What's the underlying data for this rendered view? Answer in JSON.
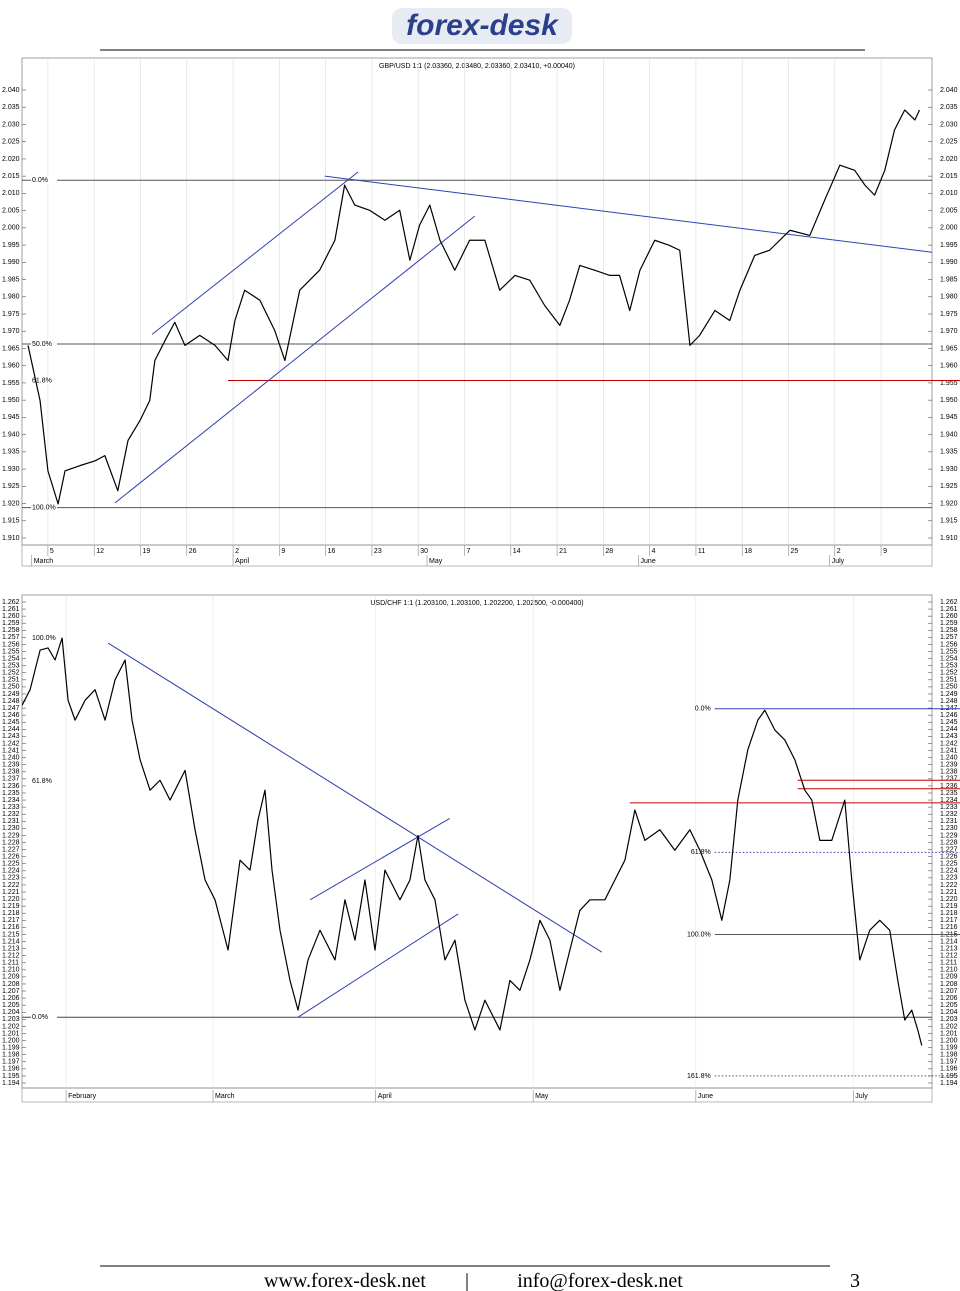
{
  "header": {
    "logo": "forex-desk"
  },
  "chart_data": [
    {
      "type": "line",
      "title": "GBP/USD 1:1 (2.03360, 2.03480, 2.03360, 2.03410, +0.00040)",
      "color": "#000000",
      "xlim": [
        -0.56,
        19.1
      ],
      "ylim": [
        1.91,
        2.04
      ],
      "xticks": [
        {
          "value": 0,
          "label": "5"
        },
        {
          "value": 1,
          "label": "12"
        },
        {
          "value": 2,
          "label": "19"
        },
        {
          "value": 3,
          "label": "26"
        },
        {
          "value": 4,
          "label": "2"
        },
        {
          "value": 5,
          "label": "9"
        },
        {
          "value": 6,
          "label": "16"
        },
        {
          "value": 7,
          "label": "23"
        },
        {
          "value": 8,
          "label": "30"
        },
        {
          "value": 9,
          "label": "7"
        },
        {
          "value": 10,
          "label": "14"
        },
        {
          "value": 11,
          "label": "21"
        },
        {
          "value": 12,
          "label": "28"
        },
        {
          "value": 13,
          "label": "4"
        },
        {
          "value": 14,
          "label": "11"
        },
        {
          "value": 15,
          "label": "18"
        },
        {
          "value": 16,
          "label": "25"
        },
        {
          "value": 17,
          "label": "2"
        },
        {
          "value": 18,
          "label": "9"
        }
      ],
      "months": [
        {
          "value": -0.35,
          "label": "March"
        },
        {
          "value": 4,
          "label": "April"
        },
        {
          "value": 8.19,
          "label": "May"
        },
        {
          "value": 12.76,
          "label": "June"
        },
        {
          "value": 16.89,
          "label": "July"
        }
      ],
      "yticks": [
        {
          "value": 1.91,
          "label": "1.910"
        },
        1.915,
        {
          "value": 1.92,
          "label": "1.920"
        },
        1.925,
        {
          "value": 1.93,
          "label": "1.930"
        },
        1.935,
        {
          "value": 1.94,
          "label": "1.940"
        },
        1.945,
        {
          "value": 1.95,
          "label": "1.950"
        },
        1.955,
        {
          "value": 1.96,
          "label": "1.960"
        },
        1.965,
        {
          "value": 1.97,
          "label": "1.970"
        },
        1.975,
        {
          "value": 1.98,
          "label": "1.980"
        },
        1.985,
        {
          "value": 1.99,
          "label": "1.990"
        },
        1.995,
        {
          "value": 2,
          "label": "2.000"
        },
        2.005,
        {
          "value": 2.01,
          "label": "2.010"
        },
        2.015,
        {
          "value": 2.02,
          "label": "2.020"
        },
        2.025,
        {
          "value": 2.03,
          "label": "2.030"
        },
        2.035,
        {
          "value": 2.04,
          "label": "2.040"
        }
      ],
      "levels": [
        {
          "label": "0.0%",
          "value": 2.0138,
          "color": "#555555",
          "label_side": "left"
        },
        {
          "label": "50.0%",
          "value": 1.9663,
          "color": "#555555",
          "label_side": "left"
        },
        {
          "label": "61.8%",
          "value": 1.9557,
          "color": "#c00000",
          "x_start": 3.89,
          "label_side": "left"
        },
        {
          "label": "100.0%",
          "value": 1.9188,
          "color": "#555555",
          "label_side": "left"
        }
      ],
      "trendlines": [
        {
          "x": [
            2.25,
            6.7
          ],
          "y": [
            1.9691,
            2.0162
          ],
          "color": "#3040b0"
        },
        {
          "x": [
            1.45,
            9.22
          ],
          "y": [
            1.9202,
            2.0034
          ],
          "color": "#3040b0"
        },
        {
          "x": [
            5.98,
            19.1
          ],
          "y": [
            2.015,
            1.9929
          ],
          "color": "#3040b0"
        }
      ],
      "x": [
        -0.43,
        -0.17,
        0,
        0.22,
        0.37,
        0.69,
        1.02,
        1.23,
        1.51,
        1.73,
        1.99,
        2.2,
        2.31,
        2.53,
        2.74,
        2.96,
        3.28,
        3.61,
        3.89,
        4.04,
        4.25,
        4.58,
        4.9,
        5.12,
        5.44,
        5.87,
        6.2,
        6.41,
        6.63,
        6.95,
        7.28,
        7.6,
        7.82,
        8.03,
        8.25,
        8.47,
        8.79,
        9.11,
        9.44,
        9.76,
        10.09,
        10.41,
        10.73,
        11.06,
        11.27,
        11.49,
        11.81,
        12.14,
        12.35,
        12.57,
        12.79,
        13.11,
        13.43,
        13.65,
        13.87,
        14.08,
        14.41,
        14.73,
        14.95,
        15.27,
        15.59,
        16.03,
        16.46,
        16.78,
        17.11,
        17.43,
        17.65,
        17.86,
        18.08,
        18.29,
        18.51,
        18.73,
        18.83
      ],
      "values": [
        1.9659,
        1.9499,
        1.9295,
        1.9199,
        1.9295,
        1.931,
        1.9324,
        1.9339,
        1.9237,
        1.9383,
        1.9441,
        1.9499,
        1.9615,
        1.9673,
        1.9726,
        1.9659,
        1.9688,
        1.9659,
        1.9615,
        1.9731,
        1.9819,
        1.979,
        1.9702,
        1.9615,
        1.9819,
        1.9877,
        1.9964,
        2.0124,
        2.0066,
        2.0051,
        2.0022,
        2.0051,
        1.9906,
        2.0008,
        2.0066,
        1.9964,
        1.9877,
        1.9964,
        1.9964,
        1.9819,
        1.9862,
        1.9848,
        1.9775,
        1.9717,
        1.979,
        1.9891,
        1.9877,
        1.9862,
        1.9862,
        1.976,
        1.9877,
        1.9964,
        1.9949,
        1.9935,
        1.9659,
        1.9688,
        1.976,
        1.9731,
        1.9819,
        1.992,
        1.9935,
        1.9993,
        1.9978,
        2.008,
        2.0182,
        2.0167,
        2.0124,
        2.0095,
        2.0167,
        2.0284,
        2.0342,
        2.0313,
        2.0342
      ]
    },
    {
      "type": "line",
      "title": "USD/CHF 1:1 (1.203100, 1.203100, 1.202200, 1.202500, -0.000400)",
      "color": "#000000",
      "xlim": [
        -8.4,
        165
      ],
      "ylim": [
        1.194,
        1.262
      ],
      "xticks": [],
      "months": [
        {
          "value": 0,
          "label": "February"
        },
        {
          "value": 28,
          "label": "March"
        },
        {
          "value": 59,
          "label": "April"
        },
        {
          "value": 89,
          "label": "May"
        },
        {
          "value": 120,
          "label": "June"
        },
        {
          "value": 150,
          "label": "July"
        }
      ],
      "yticks": [
        1.194,
        1.195,
        1.196,
        1.197,
        1.198,
        1.199,
        {
          "value": 1.2,
          "label": "1.200"
        },
        1.201,
        1.202,
        1.203,
        1.204,
        1.205,
        1.206,
        1.207,
        1.208,
        1.209,
        {
          "value": 1.21,
          "label": "1.210"
        },
        1.211,
        1.212,
        1.213,
        1.214,
        1.215,
        1.216,
        1.217,
        1.218,
        1.219,
        {
          "value": 1.22,
          "label": "1.220"
        },
        1.221,
        1.222,
        1.223,
        1.224,
        1.225,
        1.226,
        1.227,
        1.228,
        1.229,
        {
          "value": 1.23,
          "label": "1.230"
        },
        1.231,
        1.232,
        1.233,
        1.234,
        1.235,
        1.236,
        1.237,
        1.238,
        1.239,
        {
          "value": 1.24,
          "label": "1.240"
        },
        1.241,
        1.242,
        1.243,
        1.244,
        1.245,
        1.246,
        1.247,
        1.248,
        1.249,
        {
          "value": 1.25,
          "label": "1.250"
        },
        1.251,
        1.252,
        1.253,
        1.254,
        1.255,
        1.256,
        1.257,
        1.258,
        1.259,
        {
          "value": 1.26,
          "label": "1.260"
        },
        1.261,
        1.262
      ],
      "levels": [
        {
          "label": "100.0%",
          "value": 1.2569,
          "label_side": "left"
        },
        {
          "label": "61.8%",
          "value": 1.2367,
          "label_side": "left"
        },
        {
          "label": "0.0%",
          "value": 1.2033,
          "color": "#444444",
          "label_side": "left"
        },
        {
          "value": 1.2336,
          "color": "#c00000",
          "x_start": 107.4
        },
        {
          "value": 1.2368,
          "color": "#c00000",
          "x_start": 139.4
        },
        {
          "value": 1.2356,
          "color": "#c00000",
          "x_start": 139.4
        },
        {
          "label": "0.0%",
          "value": 1.2469,
          "color": "#3040b0",
          "x_start": 123.6,
          "label_side": "right"
        },
        {
          "label": "61.8%",
          "value": 1.2266,
          "color": "#3040b0",
          "x_start": 123.6,
          "style": "dotted",
          "label_side": "right"
        },
        {
          "label": "100.0%",
          "value": 1.215,
          "color": "#555555",
          "x_start": 123.6,
          "label_side": "right"
        },
        {
          "label": "161.8%",
          "value": 1.195,
          "color": "#555555",
          "x_start": 123.6,
          "style": "dotted",
          "label_side": "right"
        }
      ],
      "trendlines": [
        {
          "x": [
            8,
            102.1
          ],
          "y": [
            1.2562,
            1.2125
          ],
          "color": "#3040b0"
        },
        {
          "x": [
            46.5,
            73.1
          ],
          "y": [
            1.2199,
            1.2314
          ],
          "color": "#3040b0"
        },
        {
          "x": [
            44.2,
            74.7
          ],
          "y": [
            1.2033,
            1.2179
          ],
          "color": "#3040b0"
        }
      ],
      "x": [
        -8.38,
        -6.86,
        -4.95,
        -3.43,
        -2.1,
        -0.76,
        0.38,
        1.71,
        3.62,
        5.52,
        7.43,
        9.33,
        11.24,
        12.57,
        14.1,
        16,
        17.9,
        19.81,
        22.67,
        24.57,
        26.48,
        28.38,
        30.86,
        33.14,
        35.05,
        36.57,
        37.9,
        39.24,
        40.76,
        42.67,
        44.19,
        46.1,
        48.38,
        51.24,
        53.14,
        55.05,
        56.95,
        58.86,
        60.76,
        63.62,
        65.52,
        67.05,
        68.38,
        70.29,
        72.19,
        74.1,
        76,
        77.9,
        79.81,
        82.67,
        84.57,
        86.48,
        88.38,
        90.29,
        92.19,
        94.1,
        96,
        97.9,
        99.81,
        102.67,
        104.57,
        106.48,
        108.38,
        110.29,
        113.14,
        116,
        118.86,
        120.76,
        123.05,
        124.95,
        126.48,
        128,
        129.9,
        131.81,
        133.14,
        135.05,
        136.95,
        138.86,
        140.76,
        142.1,
        143.62,
        145.9,
        148.38,
        149.71,
        151.24,
        153.14,
        155.05,
        156.95,
        158.48,
        159.81,
        161.14,
        162.29,
        163.05
      ],
      "values": [
        1.2474,
        1.2496,
        1.2552,
        1.2555,
        1.2538,
        1.2569,
        1.2481,
        1.2453,
        1.2481,
        1.2496,
        1.2453,
        1.251,
        1.2538,
        1.2453,
        1.2397,
        1.2354,
        1.2368,
        1.234,
        1.2382,
        1.2298,
        1.2227,
        1.2199,
        1.2128,
        1.2255,
        1.2241,
        1.2312,
        1.2354,
        1.2241,
        1.2156,
        1.2085,
        1.2043,
        1.2114,
        1.2156,
        1.2114,
        1.2199,
        1.2142,
        1.2227,
        1.2128,
        1.2241,
        1.2199,
        1.2227,
        1.229,
        1.2227,
        1.2199,
        1.2114,
        1.2142,
        1.2057,
        1.2015,
        1.2057,
        1.2015,
        1.2085,
        1.2071,
        1.2114,
        1.217,
        1.2142,
        1.2071,
        1.2128,
        1.2184,
        1.2199,
        1.2199,
        1.2227,
        1.2255,
        1.2326,
        1.2283,
        1.2298,
        1.2269,
        1.2298,
        1.2269,
        1.2227,
        1.217,
        1.2227,
        1.234,
        1.2411,
        1.2453,
        1.2467,
        1.2439,
        1.2425,
        1.2397,
        1.2354,
        1.234,
        1.2283,
        1.2283,
        1.234,
        1.2227,
        1.2114,
        1.2156,
        1.217,
        1.2156,
        1.2085,
        1.2029,
        1.2043,
        1.2015,
        1.1993
      ]
    }
  ],
  "footer": {
    "website": "www.forex-desk.net",
    "separator": "|",
    "email": "info@forex-desk.net",
    "page": "3"
  }
}
